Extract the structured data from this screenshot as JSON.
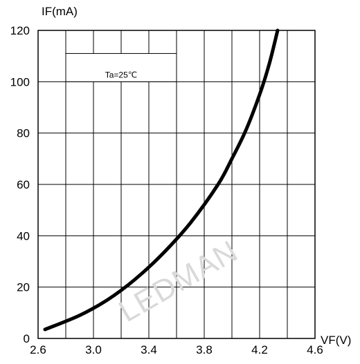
{
  "chart_data": {
    "type": "line",
    "ylabel": "IF(mA)",
    "xlabel": "VF(V)",
    "annotation": "Ta=25℃",
    "watermark": "LEDMAN",
    "xlim": [
      2.6,
      4.6
    ],
    "ylim": [
      0,
      120
    ],
    "grid": true,
    "x_ticks": [
      "2.6",
      "3.0",
      "3.4",
      "3.8",
      "4.2",
      "4.6"
    ],
    "y_ticks": [
      "0",
      "20",
      "40",
      "60",
      "80",
      "100",
      "120"
    ],
    "series": [
      {
        "x": [
          2.65,
          2.9,
          3.1,
          3.3,
          3.5,
          3.7,
          3.9,
          4.0,
          4.1,
          4.2,
          4.27,
          4.33
        ],
        "y": [
          3.5,
          9,
          15,
          23,
          33,
          45,
          60,
          70,
          81,
          95,
          107,
          120
        ]
      }
    ],
    "line_color": "#000000"
  }
}
